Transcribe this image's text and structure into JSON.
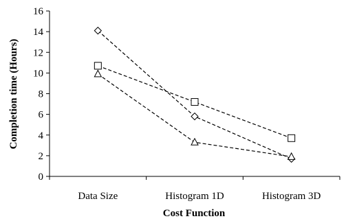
{
  "chart_data": {
    "type": "line",
    "categories": [
      "Data Size",
      "Histogram 1D",
      "Histogram 3D"
    ],
    "xlabel": "Cost Function",
    "ylabel": "Completion time (Hours)",
    "ylim": [
      0,
      16
    ],
    "yticks": [
      0,
      2,
      4,
      6,
      8,
      10,
      12,
      14,
      16
    ],
    "grid": false,
    "line_style": "dashed",
    "series": [
      {
        "marker": "diamond",
        "values": [
          14.1,
          5.8,
          1.7
        ]
      },
      {
        "marker": "square",
        "values": [
          10.7,
          7.2,
          3.7
        ]
      },
      {
        "marker": "triangle",
        "values": [
          9.9,
          3.3,
          1.9
        ]
      }
    ]
  }
}
